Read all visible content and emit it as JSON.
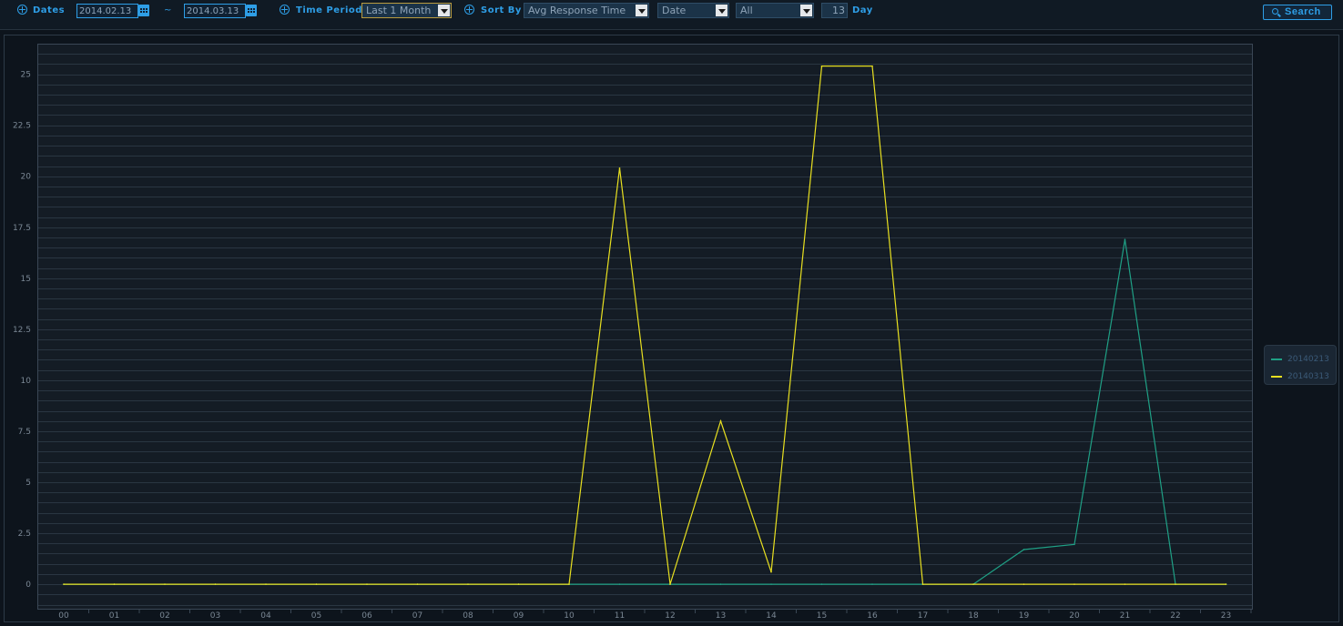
{
  "toolbar": {
    "dates_label": "Dates",
    "date_from": "2014.02.13",
    "date_to": "2014.03.13",
    "range_separator": "~",
    "time_period_label": "Time Period",
    "time_period_value": "Last 1 Month",
    "sort_by_label": "Sort By",
    "sort_by_value": "Avg Response Time",
    "group_value": "Date",
    "filter_value": "All",
    "day_value": "13",
    "day_label": "Day",
    "search_label": "Search"
  },
  "colors": {
    "accent": "#2e9ee6",
    "series_20140213": "#1fa085",
    "series_20140313": "#e8e020",
    "grid": "#2a3642",
    "axis_text": "#7a8794"
  },
  "legend": {
    "items": [
      {
        "label": "20140213",
        "color": "#1fa085"
      },
      {
        "label": "20140313",
        "color": "#e8e020"
      }
    ]
  },
  "chart_data": {
    "type": "line",
    "x": [
      "00",
      "01",
      "02",
      "03",
      "04",
      "05",
      "06",
      "07",
      "08",
      "09",
      "10",
      "11",
      "12",
      "13",
      "14",
      "15",
      "16",
      "17",
      "18",
      "19",
      "20",
      "21",
      "22",
      "23"
    ],
    "yticks": [
      "0",
      "2.5",
      "5",
      "7.5",
      "10",
      "12.5",
      "15",
      "17.5",
      "20",
      "22.5",
      "25"
    ],
    "ylim": [
      -1.2,
      26.5
    ],
    "grid": true,
    "legend_position": "right",
    "series": [
      {
        "name": "20140213",
        "color": "#1fa085",
        "values": [
          0,
          0,
          0,
          0,
          0,
          0,
          0,
          0,
          0,
          0,
          0,
          0,
          0,
          0,
          0,
          0,
          0,
          0,
          0,
          1.7,
          1.95,
          16.9,
          0,
          0
        ]
      },
      {
        "name": "20140313",
        "color": "#e8e020",
        "values": [
          0,
          0,
          0,
          0,
          0,
          0,
          0,
          0,
          0,
          0,
          0,
          20.4,
          0,
          8.0,
          0.6,
          25.4,
          25.4,
          0,
          0,
          0,
          0,
          0,
          0,
          0
        ]
      }
    ]
  }
}
